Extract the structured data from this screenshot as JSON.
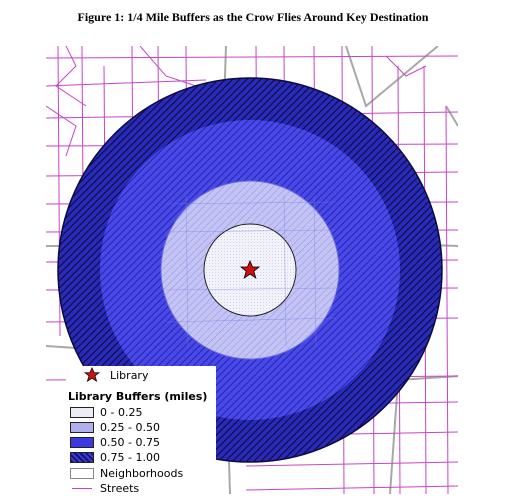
{
  "title": "Figure 1: 1/4 Mile Buffers as the Crow Flies Around Key Destination",
  "map": {
    "library_marker": "star-icon",
    "colors": {
      "streets": "#c744c7",
      "neighborhoods": "#a8a8a8",
      "buffer_0_025": "#ececf7",
      "buffer_025_050": "#b0b0ee",
      "buffer_050_075": "#3a3ae0",
      "buffer_075_100": "#14146e",
      "library_star": "#cc1111"
    }
  },
  "legend": {
    "library_label": "Library",
    "buffers_heading": "Library Buffers (miles)",
    "classes": [
      {
        "label": "0 - 0.25",
        "color": "#ececf7"
      },
      {
        "label": "0.25 - 0.50",
        "color": "#b0b0ee"
      },
      {
        "label": "0.50 - 0.75",
        "color": "#3a3ae0"
      },
      {
        "label": "0.75 - 1.00",
        "color": "#14146e"
      }
    ],
    "neighborhoods_label": "Neighborhoods",
    "streets_label": "Streets"
  }
}
